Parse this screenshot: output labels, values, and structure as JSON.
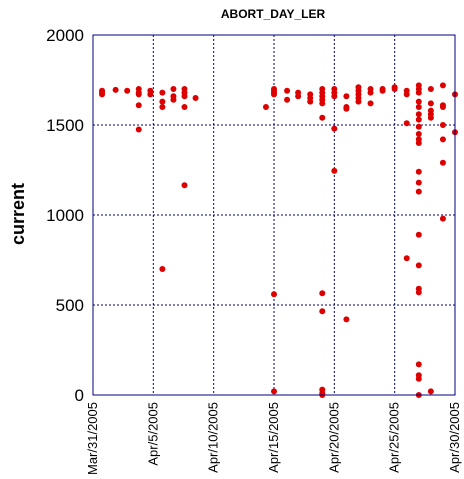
{
  "chart_data": {
    "type": "scatter",
    "title": "ABORT_DAY_LER",
    "xlabel": "",
    "ylabel": "current",
    "ylim": [
      0,
      2000
    ],
    "xlim": [
      "2005-03-31",
      "2005-04-30"
    ],
    "yticks": [
      0,
      500,
      1000,
      1500,
      2000
    ],
    "xticks": [
      {
        "date": "2005-03-31",
        "label": "Mar/31/2005"
      },
      {
        "date": "2005-04-05",
        "label": "Apr/5/2005"
      },
      {
        "date": "2005-04-10",
        "label": "Apr/10/2005"
      },
      {
        "date": "2005-04-15",
        "label": "Apr/15/2005"
      },
      {
        "date": "2005-04-20",
        "label": "Apr/20/2005"
      },
      {
        "date": "2005-04-25",
        "label": "Apr/25/2005"
      },
      {
        "date": "2005-04-30",
        "label": "Apr/30/2005"
      }
    ],
    "grid": true,
    "point_color": "#dd0000",
    "series": [
      {
        "points": [
          [
            "2005-03-31 18:00",
            1670
          ],
          [
            "2005-03-31 18:00",
            1690
          ],
          [
            "2005-03-31 18:00",
            1680
          ],
          [
            "2005-04-01 21:00",
            1695
          ],
          [
            "2005-04-02 20:00",
            1690
          ],
          [
            "2005-04-03 19:00",
            1700
          ],
          [
            "2005-04-03 19:00",
            1680
          ],
          [
            "2005-04-03 19:00",
            1670
          ],
          [
            "2005-04-03 19:00",
            1610
          ],
          [
            "2005-04-03 19:00",
            1475
          ],
          [
            "2005-04-04 18:00",
            1690
          ],
          [
            "2005-04-04 18:00",
            1670
          ],
          [
            "2005-04-05 18:00",
            1680
          ],
          [
            "2005-04-05 18:00",
            1630
          ],
          [
            "2005-04-05 18:00",
            1600
          ],
          [
            "2005-04-05 18:00",
            700
          ],
          [
            "2005-04-06 16:00",
            1700
          ],
          [
            "2005-04-06 16:00",
            1660
          ],
          [
            "2005-04-06 16:00",
            1640
          ],
          [
            "2005-04-07 14:00",
            1700
          ],
          [
            "2005-04-07 14:00",
            1680
          ],
          [
            "2005-04-07 14:00",
            1660
          ],
          [
            "2005-04-07 14:00",
            1600
          ],
          [
            "2005-04-07 14:00",
            1165
          ],
          [
            "2005-04-08 12:00",
            1650
          ],
          [
            "2005-04-14 08:00",
            1600
          ],
          [
            "2005-04-15 00:00",
            1700
          ],
          [
            "2005-04-15 00:00",
            1690
          ],
          [
            "2005-04-15 00:00",
            1680
          ],
          [
            "2005-04-15 00:00",
            1670
          ],
          [
            "2005-04-15 00:00",
            560
          ],
          [
            "2005-04-15 00:00",
            20
          ],
          [
            "2005-04-16 02:00",
            1690
          ],
          [
            "2005-04-16 02:00",
            1640
          ],
          [
            "2005-04-17 00:00",
            1680
          ],
          [
            "2005-04-17 00:00",
            1660
          ],
          [
            "2005-04-18 00:00",
            1670
          ],
          [
            "2005-04-18 00:00",
            1650
          ],
          [
            "2005-04-18 00:00",
            1630
          ],
          [
            "2005-04-19 00:00",
            1700
          ],
          [
            "2005-04-19 00:00",
            1680
          ],
          [
            "2005-04-19 00:00",
            1660
          ],
          [
            "2005-04-19 00:00",
            1640
          ],
          [
            "2005-04-19 00:00",
            1620
          ],
          [
            "2005-04-19 00:00",
            1540
          ],
          [
            "2005-04-19 00:00",
            565
          ],
          [
            "2005-04-19 00:00",
            465
          ],
          [
            "2005-04-19 00:00",
            30
          ],
          [
            "2005-04-19 00:00",
            10
          ],
          [
            "2005-04-19 00:00",
            0
          ],
          [
            "2005-04-20 00:00",
            1700
          ],
          [
            "2005-04-20 00:00",
            1680
          ],
          [
            "2005-04-20 00:00",
            1660
          ],
          [
            "2005-04-20 00:00",
            1480
          ],
          [
            "2005-04-20 00:00",
            1245
          ],
          [
            "2005-04-21 00:00",
            1660
          ],
          [
            "2005-04-21 00:00",
            1600
          ],
          [
            "2005-04-21 00:00",
            1590
          ],
          [
            "2005-04-21 00:00",
            420
          ],
          [
            "2005-04-22 00:00",
            1710
          ],
          [
            "2005-04-22 00:00",
            1690
          ],
          [
            "2005-04-22 00:00",
            1670
          ],
          [
            "2005-04-22 00:00",
            1650
          ],
          [
            "2005-04-22 00:00",
            1630
          ],
          [
            "2005-04-23 00:00",
            1700
          ],
          [
            "2005-04-23 00:00",
            1680
          ],
          [
            "2005-04-23 00:00",
            1620
          ],
          [
            "2005-04-24 00:00",
            1700
          ],
          [
            "2005-04-24 00:00",
            1690
          ],
          [
            "2005-04-25 00:00",
            1710
          ],
          [
            "2005-04-25 00:00",
            1700
          ],
          [
            "2005-04-26 00:00",
            1690
          ],
          [
            "2005-04-26 00:00",
            1670
          ],
          [
            "2005-04-26 00:00",
            1510
          ],
          [
            "2005-04-26 00:00",
            760
          ],
          [
            "2005-04-27 00:00",
            1720
          ],
          [
            "2005-04-27 00:00",
            1700
          ],
          [
            "2005-04-27 00:00",
            1680
          ],
          [
            "2005-04-27 00:00",
            1630
          ],
          [
            "2005-04-27 00:00",
            1600
          ],
          [
            "2005-04-27 00:00",
            1560
          ],
          [
            "2005-04-27 00:00",
            1530
          ],
          [
            "2005-04-27 00:00",
            1490
          ],
          [
            "2005-04-27 00:00",
            1450
          ],
          [
            "2005-04-27 00:00",
            1420
          ],
          [
            "2005-04-27 00:00",
            1400
          ],
          [
            "2005-04-27 00:00",
            1240
          ],
          [
            "2005-04-27 00:00",
            1180
          ],
          [
            "2005-04-27 00:00",
            1130
          ],
          [
            "2005-04-27 00:00",
            890
          ],
          [
            "2005-04-27 00:00",
            720
          ],
          [
            "2005-04-27 00:00",
            590
          ],
          [
            "2005-04-27 00:00",
            570
          ],
          [
            "2005-04-27 00:00",
            170
          ],
          [
            "2005-04-27 00:00",
            110
          ],
          [
            "2005-04-27 00:00",
            90
          ],
          [
            "2005-04-27 00:00",
            0
          ],
          [
            "2005-04-28 00:00",
            1700
          ],
          [
            "2005-04-28 00:00",
            1620
          ],
          [
            "2005-04-28 00:00",
            1580
          ],
          [
            "2005-04-28 00:00",
            1560
          ],
          [
            "2005-04-28 00:00",
            1540
          ],
          [
            "2005-04-28 00:00",
            20
          ],
          [
            "2005-04-29 00:00",
            1720
          ],
          [
            "2005-04-29 00:00",
            1610
          ],
          [
            "2005-04-29 00:00",
            1600
          ],
          [
            "2005-04-29 00:00",
            1500
          ],
          [
            "2005-04-29 00:00",
            1420
          ],
          [
            "2005-04-29 00:00",
            1290
          ],
          [
            "2005-04-29 00:00",
            980
          ],
          [
            "2005-04-30 00:00",
            1670
          ],
          [
            "2005-04-30 00:00",
            1460
          ]
        ]
      }
    ]
  }
}
